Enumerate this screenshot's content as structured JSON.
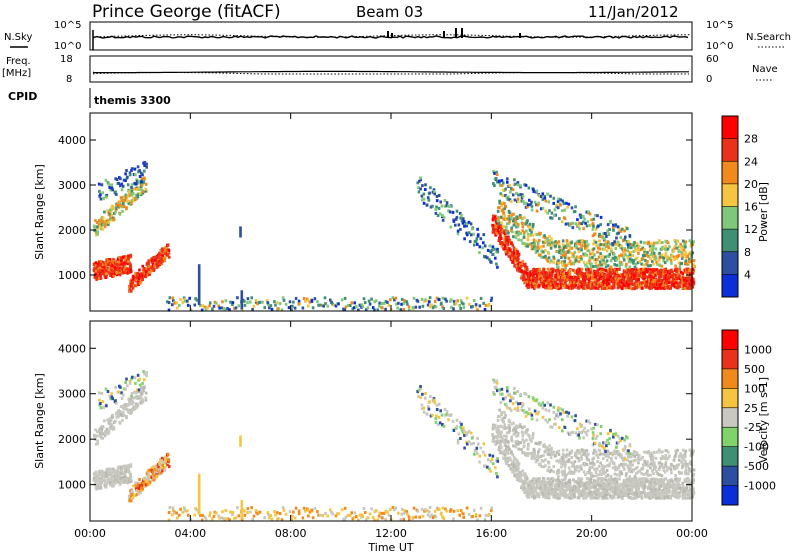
{
  "header": {
    "station": "Prince George (fitACF)",
    "beam": "Beam 03",
    "date": "11/Jan/2012"
  },
  "left_labels": {
    "nsky": "N.Sky",
    "nsky_top": "10^5",
    "nsky_bottom": "10^0",
    "freq": "Freq.",
    "freq_unit": "[MHz]",
    "freq_top": "18",
    "freq_bottom": "8",
    "cpid": "CPID",
    "cpid_value": "themis 3300"
  },
  "right_labels": {
    "nsearch_top": "10^5",
    "nsearch_bottom": "10^0",
    "nsearch": "N.Search",
    "nave_top": "60",
    "nave_bottom": "0",
    "nave": "Nave"
  },
  "chart_data": [
    {
      "type": "heatmap",
      "name": "power",
      "ylabel": "Slant Range [km]",
      "ylim": [
        200,
        4600
      ],
      "yticks": [
        1000,
        2000,
        3000,
        4000
      ],
      "colorbar_label": "Power [dB]",
      "colorbar_ticks": [
        "4",
        "8",
        "12",
        "16",
        "20",
        "24",
        "28"
      ],
      "colors": [
        "#0a2fd8",
        "#2d4fa0",
        "#3f8f74",
        "#7fc77a",
        "#f5c542",
        "#f08a1c",
        "#e8321a",
        "#ff0000"
      ]
    },
    {
      "type": "heatmap",
      "name": "velocity",
      "ylabel": "Slant Range [km]",
      "ylim": [
        200,
        4600
      ],
      "yticks": [
        1000,
        2000,
        3000,
        4000
      ],
      "colorbar_label": "Velocity [m s-1]",
      "colorbar_ticks": [
        "1000",
        "500",
        "100",
        "25",
        "-25",
        "-100",
        "-500",
        "-1000"
      ],
      "colors": [
        "#0a2fd8",
        "#2d4fa0",
        "#3f8f74",
        "#7fd36a",
        "#c8c8c0",
        "#f5c542",
        "#f08a1c",
        "#e8321a",
        "#ff0000"
      ]
    }
  ],
  "time_axis": {
    "label": "Time UT",
    "ticks": [
      "00:00",
      "04:00",
      "08:00",
      "12:00",
      "16:00",
      "20:00",
      "00:00"
    ]
  }
}
